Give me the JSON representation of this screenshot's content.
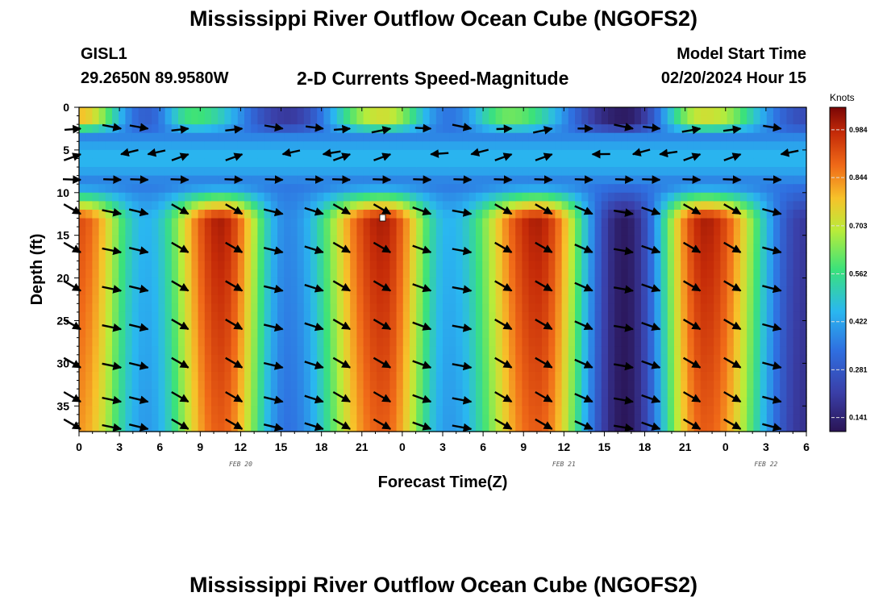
{
  "page": {
    "title_top": "Mississippi River Outflow Ocean Cube (NGOFS2)",
    "title_bottom": "Mississippi River Outflow Ocean Cube (NGOFS2)",
    "station_id": "GISL1",
    "station_coords": "29.2650N  89.9580W",
    "subtitle": "2-D Currents Speed-Magnitude",
    "model_start_label": "Model Start Time",
    "model_start_value": "02/20/2024 Hour 15"
  },
  "chart_data": {
    "type": "heatmap",
    "title": "2-D Currents Speed-Magnitude",
    "xlabel": "Forecast Time(Z)",
    "ylabel": "Depth (ft)",
    "x_tick_labels": [
      "0",
      "3",
      "6",
      "9",
      "12",
      "15",
      "18",
      "21",
      "0",
      "3",
      "6",
      "9",
      "12",
      "15",
      "18",
      "21",
      "0",
      "3",
      "6"
    ],
    "x_range_hours": [
      0,
      54
    ],
    "date_labels": [
      {
        "text": "FEB 20",
        "hour": 12
      },
      {
        "text": "FEB 21",
        "hour": 36
      },
      {
        "text": "FEB 22",
        "hour": 51
      }
    ],
    "y_ticks": [
      0,
      5,
      10,
      15,
      20,
      25,
      30,
      35
    ],
    "ylim": [
      0,
      38
    ],
    "colorbar": {
      "unit": "Knots",
      "ticks": [
        "0.984",
        "0.844",
        "0.703",
        "0.562",
        "0.422",
        "0.281",
        "0.141"
      ],
      "range": [
        0.1,
        1.05
      ]
    },
    "speed_peaks_surface": [
      {
        "hour": 0.0,
        "speed": 0.78
      },
      {
        "hour": 5.0,
        "speed": 0.3
      },
      {
        "hour": 8.5,
        "speed": 0.58
      },
      {
        "hour": 15.5,
        "speed": 0.2
      },
      {
        "hour": 22.5,
        "speed": 0.72
      },
      {
        "hour": 27.5,
        "speed": 0.35
      },
      {
        "hour": 32.0,
        "speed": 0.62
      },
      {
        "hour": 40.5,
        "speed": 0.12
      },
      {
        "hour": 46.5,
        "speed": 0.72
      },
      {
        "hour": 54.0,
        "speed": 0.25
      }
    ],
    "speed_peaks_deep": [
      {
        "hour": 0.0,
        "speed": 0.92
      },
      {
        "hour": 5.0,
        "speed": 0.45
      },
      {
        "hour": 10.5,
        "speed": 1.0
      },
      {
        "hour": 15.5,
        "speed": 0.38
      },
      {
        "hour": 22.5,
        "speed": 1.0
      },
      {
        "hour": 27.5,
        "speed": 0.45
      },
      {
        "hour": 34.0,
        "speed": 1.0
      },
      {
        "hour": 40.5,
        "speed": 0.12
      },
      {
        "hour": 46.5,
        "speed": 1.0
      },
      {
        "hour": 54.0,
        "speed": 0.2
      }
    ],
    "surface_band_depth_ft": [
      3,
      9
    ],
    "vector_depths_ft": [
      2.5,
      5.5,
      8.5,
      12.5,
      17.0,
      21.5,
      26.0,
      30.5,
      34.5,
      38.0
    ],
    "vector_hours": [
      0,
      3,
      5,
      8,
      12,
      15,
      18,
      20,
      23,
      26,
      29,
      32,
      35,
      38,
      41,
      43,
      46,
      49,
      52
    ]
  }
}
